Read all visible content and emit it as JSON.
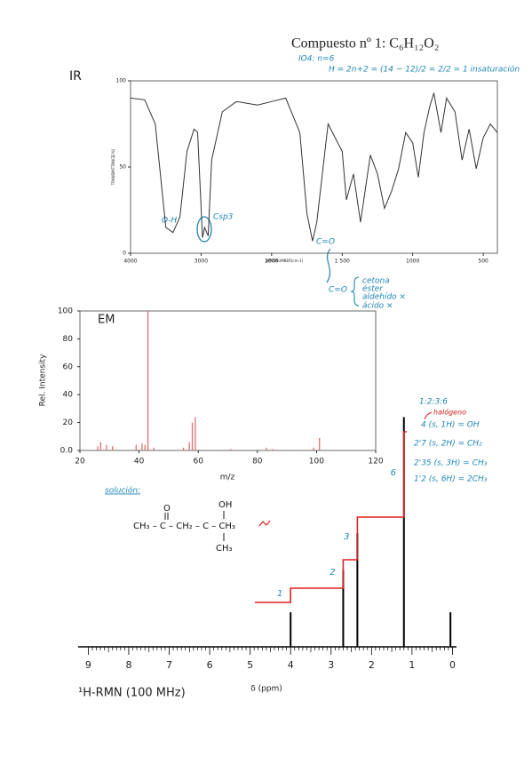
{
  "title": "Compuesto nº 1: C₆H₁₂O₂",
  "ir_notes": {
    "line1": "IO4: n=6",
    "line2": "H = 2n+2 = (14 − 12)/2 = 2/2 = 1 insaturación",
    "oh": "O-H",
    "csp3": "Csp3",
    "co": "C=O",
    "co2": "C=O",
    "options": [
      "cetona",
      "éster",
      "aldehído ×",
      "ácido ×"
    ]
  },
  "nmr_notes": {
    "ratio": "1:2:3:6",
    "halogen": "halógeno",
    "assignments": [
      "4 (s, 1H) = OH",
      "2'7 (s, 2H) = CH₂",
      "2'35 (s, 3H) = CH₃",
      "1'2 (s, 6H) = 2CH₃"
    ]
  },
  "solution": {
    "label": "solución:",
    "chain": "CH₃ – C – CH₂ – C – CH₃",
    "carbonyl": "O",
    "hydroxyl": "OH",
    "methyl": "CH₃"
  },
  "chart_data": [
    {
      "type": "line",
      "label": "IR",
      "ylabel": "TRANSMITTANCE[%]",
      "xlabel": "WAVENUMBER[cm-1]",
      "color": "#333333",
      "x": [
        4000,
        3800,
        3650,
        3500,
        3400,
        3300,
        3200,
        3100,
        3050,
        2980,
        2950,
        2900,
        2850,
        2700,
        2500,
        2200,
        2000,
        1900,
        1800,
        1750,
        1710,
        1680,
        1600,
        1500,
        1470,
        1420,
        1370,
        1300,
        1250,
        1200,
        1150,
        1100,
        1050,
        1000,
        960,
        920,
        880,
        850,
        800,
        760,
        700,
        650,
        600,
        550,
        500,
        450,
        400
      ],
      "values": [
        90,
        89,
        75,
        15,
        12,
        21,
        59,
        72,
        70,
        9,
        15,
        10,
        54,
        82,
        88,
        86,
        88,
        90,
        70,
        23,
        7,
        18,
        75,
        59,
        31,
        46,
        18,
        57,
        46,
        26,
        36,
        49,
        70,
        64,
        44,
        70,
        85,
        93,
        70,
        90,
        82,
        54,
        72,
        49,
        67,
        75,
        70
      ],
      "xlim": [
        4000,
        400
      ],
      "xscale_break": 2000,
      "xticks": [
        4000,
        3000,
        2000,
        {
          "value": 1500,
          "label": "1 500"
        },
        1000,
        500
      ],
      "ylim": [
        0,
        100
      ],
      "yticks": [
        0,
        50,
        100
      ]
    },
    {
      "type": "bar",
      "label": "EM",
      "ylabel": "Rel. Intensity",
      "xlabel": "m/z",
      "color": "#e07070",
      "x": [
        26,
        27,
        29,
        31,
        39,
        41,
        42,
        43,
        45,
        55,
        57,
        58,
        59,
        71,
        83,
        85,
        99,
        101
      ],
      "values": [
        3,
        6,
        4,
        3,
        4,
        5,
        4,
        100,
        2,
        2,
        6,
        20,
        24,
        1,
        2,
        1,
        2,
        9
      ],
      "xlim": [
        20,
        120
      ],
      "xticks": [
        20,
        40,
        60,
        80,
        100,
        120
      ],
      "ylim": [
        0,
        100
      ],
      "yticks": [
        {
          "value": 0,
          "label": "0.0"
        },
        20,
        40,
        60,
        80,
        100
      ]
    },
    {
      "type": "bar",
      "label": "¹H-RMN (100 MHz)",
      "xlabel": "δ (ppm)",
      "color": "#000000",
      "x": [
        4.0,
        2.7,
        2.35,
        1.2,
        0.05
      ],
      "values": [
        14,
        31,
        46,
        93,
        14
      ],
      "xlim": [
        9.25,
        -0.1
      ],
      "xticks": [
        9,
        8,
        7,
        6,
        5,
        4,
        3,
        2,
        1,
        0
      ],
      "ylim": [
        0,
        100
      ],
      "integration": {
        "x": [
          4.0,
          2.7,
          2.35,
          1.2
        ],
        "values": [
          1,
          2,
          3,
          6
        ],
        "color": "#e02020"
      }
    }
  ]
}
